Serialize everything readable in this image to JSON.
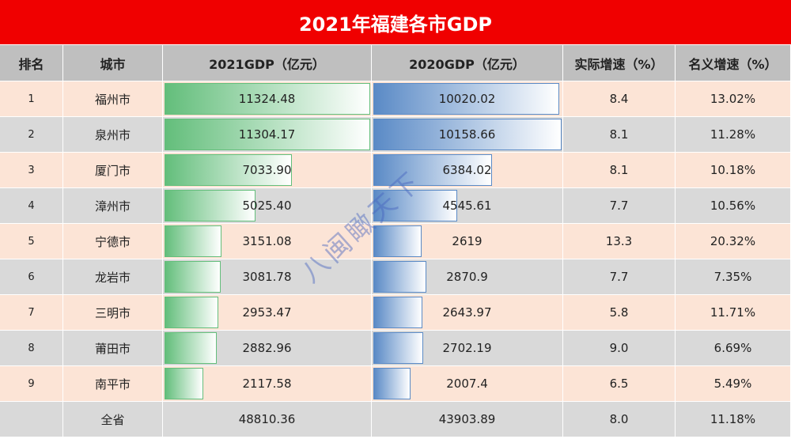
{
  "title": "2021年福建各市GDP",
  "watermark": "八闽瞰天下",
  "table": {
    "header": [
      "排名",
      "城市",
      "2021GDP（亿元）",
      "2020GDP（亿元）",
      "实际增速（%）",
      "名义增速（%）"
    ],
    "rows": [
      [
        "1",
        "福州市",
        "11324.48",
        "10020.02",
        "8.4",
        "13.02%"
      ],
      [
        "2",
        "泉州市",
        "11304.17",
        "10158.66",
        "8.1",
        "11.28%"
      ],
      [
        "3",
        "厦门市",
        "7033.90",
        "6384.02",
        "8.1",
        "10.18%"
      ],
      [
        "4",
        "漳州市",
        "5025.40",
        "4545.61",
        "7.7",
        "10.56%"
      ],
      [
        "5",
        "宁德市",
        "3151.08",
        "2619",
        "13.3",
        "20.32%"
      ],
      [
        "6",
        "龙岩市",
        "3081.78",
        "2870.9",
        "7.7",
        "7.35%"
      ],
      [
        "7",
        "三明市",
        "2953.47",
        "2643.97",
        "5.8",
        "11.71%"
      ],
      [
        "8",
        "莆田市",
        "2882.96",
        "2702.19",
        "9.0",
        "6.69%"
      ],
      [
        "9",
        "南平市",
        "2117.58",
        "2007.4",
        "6.5",
        "5.49%"
      ]
    ],
    "total": [
      "全省",
      "48810.36",
      "43903.89",
      "8.0",
      "11.18%"
    ]
  }
}
